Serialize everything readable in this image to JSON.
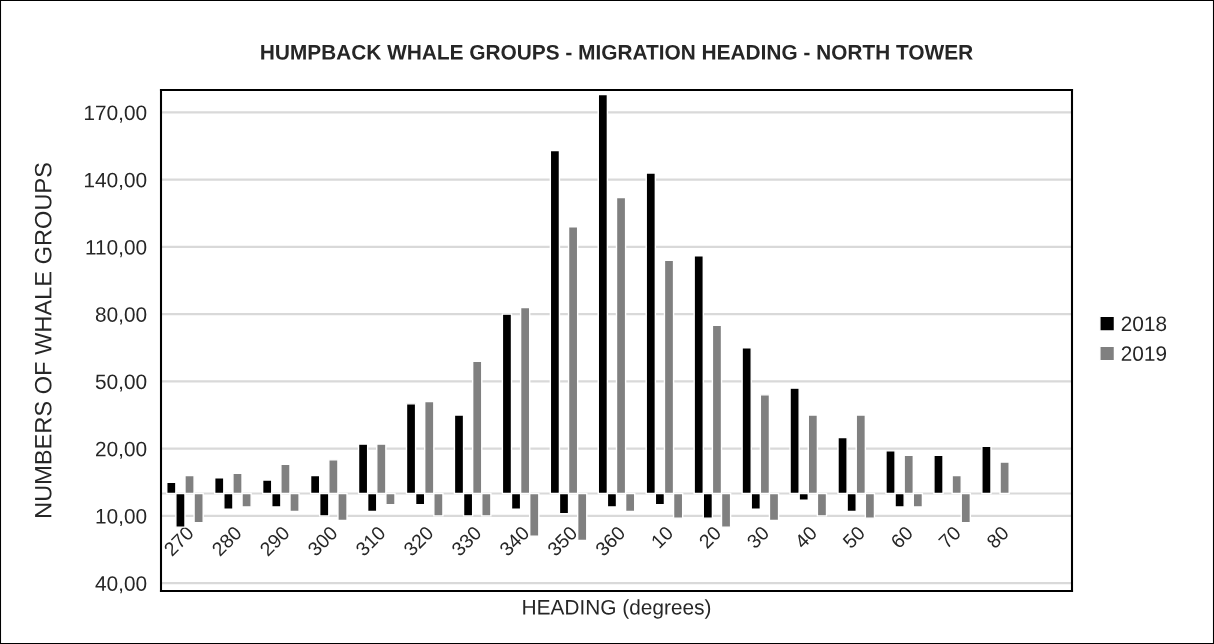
{
  "chart_data": {
    "type": "bar",
    "title": "HUMPBACK WHALE GROUPS - MIGRATION HEADING - NORTH TOWER",
    "xlabel": "HEADING (degrees)",
    "ylabel": "NUMBERS OF WHALE GROUPS",
    "categories": [
      "270",
      "280",
      "290",
      "300",
      "310",
      "320",
      "330",
      "340",
      "350",
      "360",
      "10",
      "20",
      "30",
      "40",
      "50",
      "60",
      "70",
      "80",
      null
    ],
    "series": [
      {
        "name": "2018",
        "color": "#000000",
        "values": [
          5,
          7,
          6,
          8,
          22,
          40,
          35,
          80,
          153,
          178,
          143,
          106,
          65,
          47,
          25,
          19,
          17,
          21,
          null
        ]
      },
      {
        "color": "#000000",
        "values": [
          -15,
          -7,
          -6,
          -10,
          -8,
          -5,
          -10,
          -7,
          -9,
          -6,
          -5,
          -11,
          -7,
          -3,
          -8,
          -6,
          null,
          null,
          null
        ]
      },
      {
        "name": "2019",
        "color": "#808080",
        "values": [
          8,
          9,
          13,
          15,
          22,
          41,
          59,
          83,
          119,
          132,
          104,
          75,
          44,
          35,
          35,
          17,
          8,
          14,
          null
        ]
      },
      {
        "color": "#808080",
        "values": [
          -13,
          -6,
          -8,
          -12,
          -5,
          -10,
          -10,
          -19,
          -21,
          -8,
          -11,
          -15,
          -12,
          -10,
          -11,
          -6,
          -13,
          null,
          null
        ]
      }
    ],
    "ylim": [
      -43.5,
      180
    ],
    "yticks": [
      {
        "value": -40,
        "label": "40,00"
      },
      {
        "value": -10,
        "label": "10,00"
      },
      {
        "value": 20,
        "label": "20,00"
      },
      {
        "value": 50,
        "label": "50,00"
      },
      {
        "value": 80,
        "label": "80,00"
      },
      {
        "value": 110,
        "label": "110,00"
      },
      {
        "value": 140,
        "label": "140,00"
      },
      {
        "value": 170,
        "label": "170,00"
      }
    ],
    "grid": "y",
    "legend": "right"
  }
}
